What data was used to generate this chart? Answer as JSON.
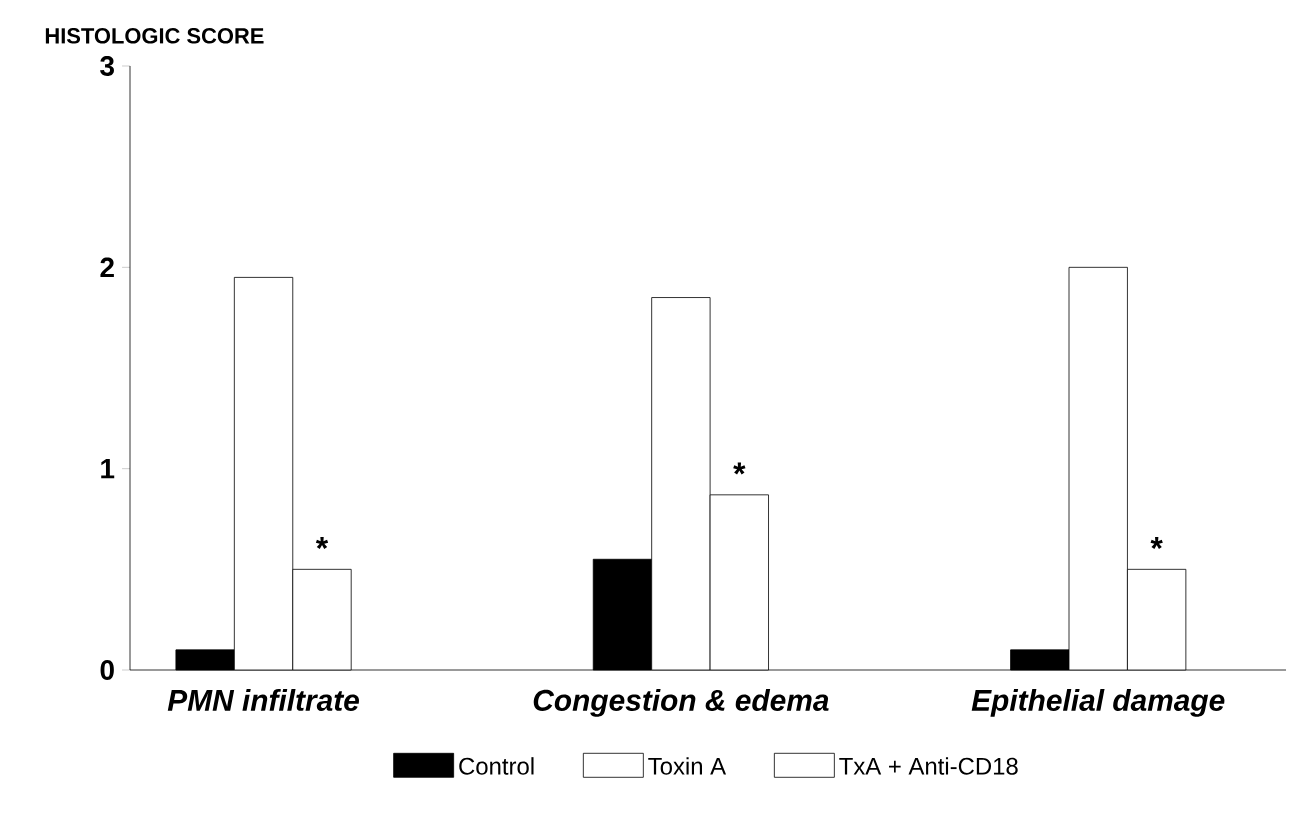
{
  "chart_data": {
    "type": "bar",
    "ylabel": "HISTOLOGIC SCORE",
    "categories": [
      "PMN infiltrate",
      "Congestion & edema",
      "Epithelial damage"
    ],
    "series": [
      {
        "name": "Control",
        "color": "#000000",
        "values": [
          0.1,
          0.55,
          0.1
        ]
      },
      {
        "name": "Toxin A",
        "color": "#ffffff",
        "values": [
          1.95,
          1.85,
          2.0
        ]
      },
      {
        "name": "TxA + Anti-CD18",
        "color": "#ffffff",
        "values": [
          0.5,
          0.87,
          0.5
        ]
      }
    ],
    "ylim": [
      0,
      3
    ],
    "yticks": [
      0,
      1,
      2,
      3
    ],
    "legend": "bottom",
    "annotations": [
      "*",
      "*",
      "*"
    ]
  }
}
